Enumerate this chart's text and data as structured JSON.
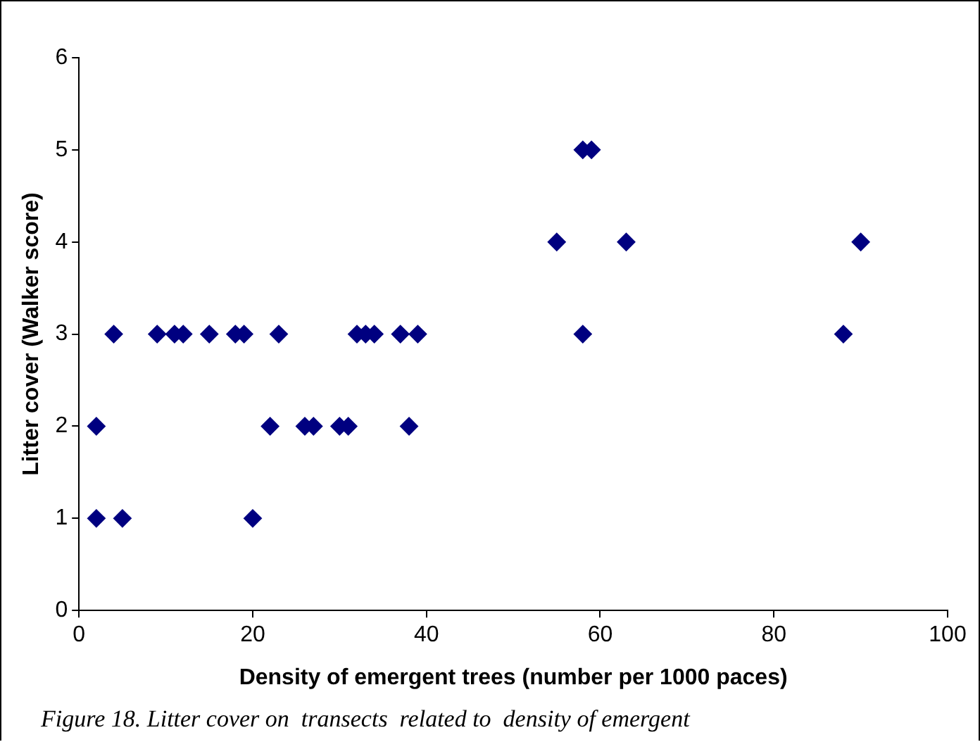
{
  "chart_data": {
    "type": "scatter",
    "xlabel": "Density of emergent trees (number per 1000 paces)",
    "ylabel": "Litter cover (Walker score)",
    "annotations": [
      "Figure 18. Litter cover on  transects  related to  density of emergent"
    ],
    "x": [
      2,
      2,
      4,
      5,
      9,
      11,
      12,
      15,
      18,
      19,
      20,
      22,
      23,
      26,
      27,
      30,
      31,
      32,
      33,
      34,
      37,
      38,
      39,
      55,
      58,
      58,
      59,
      63,
      88,
      90
    ],
    "values": [
      2,
      1,
      3,
      1,
      3,
      3,
      3,
      3,
      3,
      3,
      1,
      2,
      3,
      2,
      2,
      2,
      2,
      3,
      3,
      3,
      3,
      2,
      3,
      4,
      3,
      5,
      5,
      4,
      3,
      4
    ],
    "color": "#000080",
    "marker": "diamond",
    "xlim": [
      0,
      100
    ],
    "xticks": [
      0,
      20,
      40,
      60,
      80,
      100
    ],
    "ylim": [
      0,
      6
    ],
    "yticks": [
      0,
      1,
      2,
      3,
      4,
      5,
      6
    ],
    "grid": false,
    "legend": false
  }
}
